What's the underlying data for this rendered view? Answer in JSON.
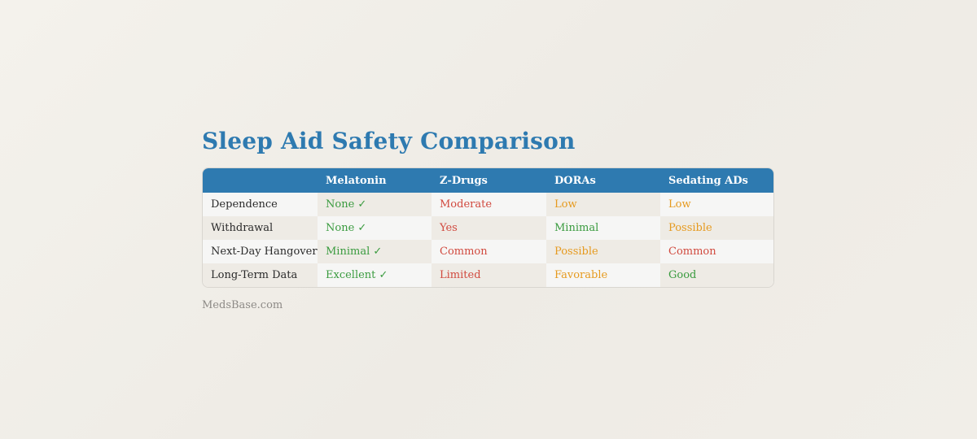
{
  "title": "Sleep Aid Safety Comparison",
  "colors": {
    "accent": "#2e7ab0",
    "good": "#3a9b3f",
    "warn": "#e69a1f",
    "bad": "#d14a3f"
  },
  "table": {
    "headers": [
      "",
      "Melatonin",
      "Z-Drugs",
      "DORAs",
      "Sedating ADs"
    ],
    "rows": [
      {
        "label": "Dependence",
        "cells": [
          {
            "text": "None ✓",
            "status": "good"
          },
          {
            "text": "Moderate",
            "status": "bad"
          },
          {
            "text": "Low",
            "status": "warn"
          },
          {
            "text": "Low",
            "status": "warn"
          }
        ]
      },
      {
        "label": "Withdrawal",
        "cells": [
          {
            "text": "None ✓",
            "status": "good"
          },
          {
            "text": "Yes",
            "status": "bad"
          },
          {
            "text": "Minimal",
            "status": "good"
          },
          {
            "text": "Possible",
            "status": "warn"
          }
        ]
      },
      {
        "label": "Next-Day Hangover",
        "cells": [
          {
            "text": "Minimal ✓",
            "status": "good"
          },
          {
            "text": "Common",
            "status": "bad"
          },
          {
            "text": "Possible",
            "status": "warn"
          },
          {
            "text": "Common",
            "status": "bad"
          }
        ]
      },
      {
        "label": "Long-Term Data",
        "cells": [
          {
            "text": "Excellent ✓",
            "status": "good"
          },
          {
            "text": "Limited",
            "status": "bad"
          },
          {
            "text": "Favorable",
            "status": "warn"
          },
          {
            "text": "Good",
            "status": "good"
          }
        ]
      }
    ]
  },
  "source": "MedsBase.com"
}
